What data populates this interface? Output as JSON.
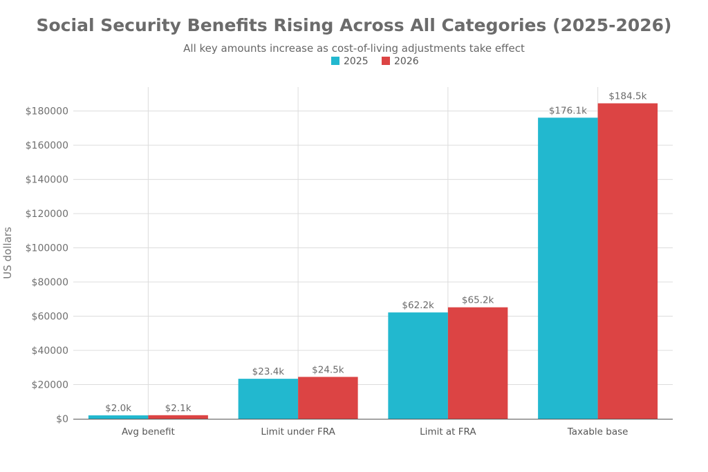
{
  "chart_data": {
    "type": "bar",
    "title": "Social Security Benefits Rising Across All Categories (2025-2026)",
    "subtitle": "All key amounts increase as cost-of-living adjustments take effect",
    "xlabel": "",
    "ylabel": "US dollars",
    "ylim": [
      0,
      194000
    ],
    "yticks": [
      0,
      20000,
      40000,
      60000,
      80000,
      100000,
      120000,
      140000,
      160000,
      180000
    ],
    "ytick_labels": [
      "$0",
      "$20000",
      "$40000",
      "$60000",
      "$80000",
      "$100000",
      "$120000",
      "$140000",
      "$160000",
      "$180000"
    ],
    "categories": [
      "Avg benefit",
      "Limit under FRA",
      "Limit at FRA",
      "Taxable base"
    ],
    "series": [
      {
        "name": "2025",
        "color": "#22b8cf",
        "values": [
          2000,
          23400,
          62200,
          176100
        ],
        "labels": [
          "$2.0k",
          "$23.4k",
          "$62.2k",
          "$176.1k"
        ]
      },
      {
        "name": "2026",
        "color": "#dc4444",
        "values": [
          2100,
          24500,
          65200,
          184500
        ],
        "labels": [
          "$2.1k",
          "$24.5k",
          "$65.2k",
          "$184.5k"
        ]
      }
    ],
    "legend": "top-center",
    "grid": true
  }
}
